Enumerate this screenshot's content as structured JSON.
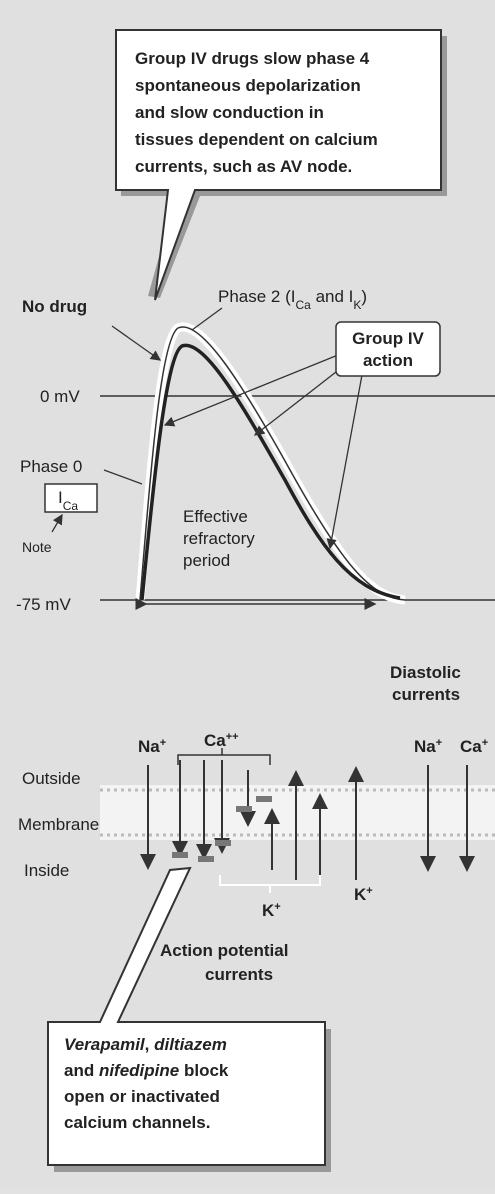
{
  "top_callout": {
    "lines": [
      "Group IV drugs slow phase 4",
      "spontaneous depolarization",
      "and slow conduction in",
      "tissues dependent on calcium",
      "currents, such as AV node."
    ]
  },
  "graph": {
    "no_drug": "No drug",
    "phase2": [
      "Phase 2 (I",
      {
        "text": "Ca",
        "sub": true
      },
      " and I",
      {
        "text": "K",
        "sub": true
      },
      ")"
    ],
    "group_iv": [
      "Group IV",
      "action"
    ],
    "zero_mv": "0 mV",
    "phase0": "Phase 0",
    "ica": [
      "I",
      {
        "text": "Ca",
        "sub": true
      }
    ],
    "note": "Note",
    "refractory": [
      "Effective",
      "refractory",
      "period"
    ],
    "minus75": "-75 mV"
  },
  "membrane": {
    "diastolic": [
      "Diastolic",
      "currents"
    ],
    "ions": [
      [
        "Na",
        {
          "text": "+",
          "sup": true
        }
      ],
      [
        "Ca",
        {
          "text": "++",
          "sup": true
        }
      ],
      [
        "Na",
        {
          "text": "+",
          "sup": true
        }
      ],
      [
        "Ca",
        {
          "text": "+",
          "sup": true
        }
      ],
      [
        "K",
        {
          "text": "+",
          "sup": true
        }
      ],
      [
        "K",
        {
          "text": "+",
          "sup": true
        }
      ]
    ],
    "outside": "Outside",
    "membrane": "Membrane",
    "inside": "Inside",
    "ap_currents": [
      "Action potential",
      "currents"
    ]
  },
  "bottom_callout": {
    "lines": [
      [
        {
          "text": "Verapamil",
          "italic": true
        },
        ", ",
        {
          "text": "diltiazem",
          "italic": true
        }
      ],
      [
        "and ",
        {
          "text": "nifedipine",
          "italic": true
        },
        " block"
      ],
      [
        "open or inactivated"
      ],
      [
        "calcium channels."
      ]
    ]
  }
}
